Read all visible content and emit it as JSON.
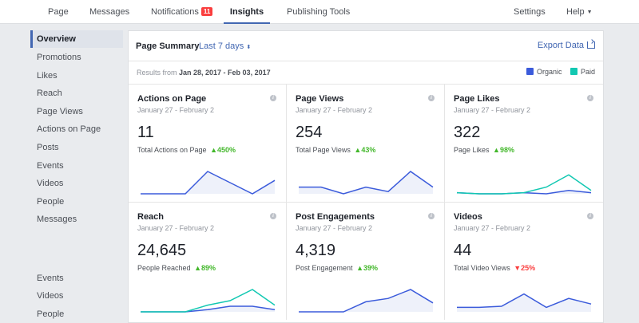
{
  "nav": {
    "items": [
      {
        "label": "Page",
        "name": "nav-page"
      },
      {
        "label": "Messages",
        "name": "nav-messages"
      },
      {
        "label": "Notifications",
        "name": "nav-notifications",
        "badge": "11"
      },
      {
        "label": "Insights",
        "name": "nav-insights",
        "active": true
      },
      {
        "label": "Publishing Tools",
        "name": "nav-publishing-tools"
      }
    ],
    "settings_label": "Settings",
    "help_label": "Help"
  },
  "sidebar": {
    "items": [
      "Overview",
      "Promotions",
      "Likes",
      "Reach",
      "Page Views",
      "Actions on Page",
      "Posts",
      "Events",
      "Videos",
      "People",
      "Messages"
    ],
    "secondary_items": [
      "Events",
      "Videos",
      "People"
    ]
  },
  "summary": {
    "title": "Page Summary",
    "range": "Last 7 days",
    "range_icon": "up-down-arrow-icon",
    "export_label": "Export Data",
    "results_prefix": "Results from ",
    "results_range": "Jan 28, 2017 - Feb 03, 2017",
    "legend": [
      {
        "label": "Organic",
        "color": "#3b5bdb"
      },
      {
        "label": "Paid",
        "color": "#12c8b2"
      }
    ]
  },
  "colors": {
    "organic": "#3b5bdb",
    "paid": "#12c8b2",
    "up": "#42b72a",
    "down": "#fa3e3e"
  },
  "cards": [
    {
      "title": "Actions on Page",
      "dates": "January 27 - February 2",
      "value": "11",
      "metric_label": "Total Actions on Page",
      "change": "450%",
      "direction": "up",
      "organic": [
        0,
        0,
        0,
        1,
        0.5,
        0,
        0.6
      ],
      "paid": []
    },
    {
      "title": "Page Views",
      "dates": "January 27 - February 2",
      "value": "254",
      "metric_label": "Total Page Views",
      "change": "43%",
      "direction": "up",
      "organic": [
        0.3,
        0.3,
        0,
        0.3,
        0.1,
        1,
        0.3
      ],
      "paid": []
    },
    {
      "title": "Page Likes",
      "dates": "January 27 - February 2",
      "value": "322",
      "metric_label": "Page Likes",
      "change": "98%",
      "direction": "up",
      "organic": [
        0.05,
        0,
        0,
        0.05,
        0,
        0.15,
        0.05
      ],
      "paid": [
        0.05,
        0,
        0,
        0.05,
        0.3,
        0.85,
        0.15
      ]
    },
    {
      "title": "Reach",
      "dates": "January 27 - February 2",
      "value": "24,645",
      "metric_label": "People Reached",
      "change": "89%",
      "direction": "up",
      "organic": [
        0,
        0,
        0,
        0.1,
        0.25,
        0.25,
        0.1
      ],
      "paid": [
        0,
        0,
        0,
        0.3,
        0.5,
        1,
        0.3
      ]
    },
    {
      "title": "Post Engagements",
      "dates": "January 27 - February 2",
      "value": "4,319",
      "metric_label": "Post Engagement",
      "change": "39%",
      "direction": "up",
      "organic": [
        0,
        0,
        0,
        0.45,
        0.6,
        1,
        0.4
      ],
      "paid": []
    },
    {
      "title": "Videos",
      "dates": "January 27 - February 2",
      "value": "44",
      "metric_label": "Total Video Views",
      "change": "25%",
      "direction": "down",
      "organic": [
        0.2,
        0.2,
        0.25,
        0.8,
        0.2,
        0.6,
        0.35
      ],
      "paid": []
    }
  ]
}
